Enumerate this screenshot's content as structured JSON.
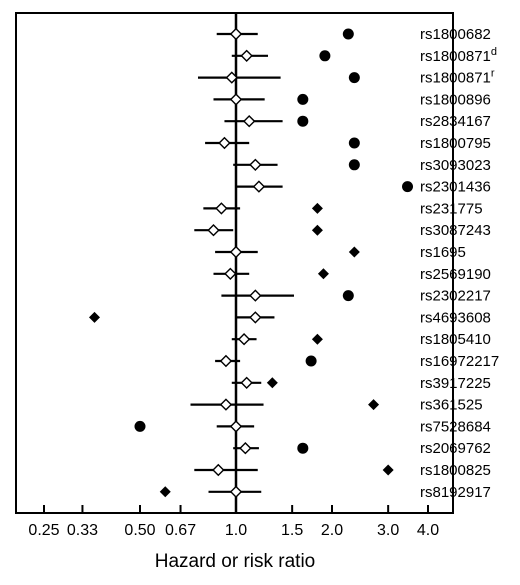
{
  "chart_data": {
    "type": "forest",
    "title": "",
    "xlabel": "Hazard or risk ratio",
    "xscale": "log",
    "xlim": [
      0.2,
      4.6
    ],
    "xticks": [
      0.25,
      0.33,
      0.5,
      0.67,
      1.0,
      1.5,
      2.0,
      3.0,
      4.0
    ],
    "xtick_labels": [
      "0.25",
      "0.33",
      "0.50",
      "0.67",
      "1.0",
      "1.5",
      "2.0",
      "3.0",
      "4.0"
    ],
    "reference_line": 1.0,
    "grid": false,
    "rows": [
      {
        "snp": "rs1800682",
        "sup": "",
        "estimate": 1.0,
        "ci": [
          0.87,
          1.17
        ],
        "marker_value": 2.25,
        "marker": "circle"
      },
      {
        "snp": "rs1800871",
        "sup": "d",
        "estimate": 1.08,
        "ci": [
          0.97,
          1.26
        ],
        "marker_value": 1.9,
        "marker": "circle"
      },
      {
        "snp": "rs1800871",
        "sup": "r",
        "estimate": 0.97,
        "ci": [
          0.76,
          1.38
        ],
        "marker_value": 2.35,
        "marker": "circle"
      },
      {
        "snp": "rs1800896",
        "sup": "",
        "estimate": 1.0,
        "ci": [
          0.85,
          1.23
        ],
        "marker_value": 1.62,
        "marker": "circle"
      },
      {
        "snp": "rs2834167",
        "sup": "",
        "estimate": 1.1,
        "ci": [
          0.92,
          1.4
        ],
        "marker_value": 1.62,
        "marker": "circle"
      },
      {
        "snp": "rs1800795",
        "sup": "",
        "estimate": 0.92,
        "ci": [
          0.8,
          1.1
        ],
        "marker_value": 2.35,
        "marker": "circle"
      },
      {
        "snp": "rs3093023",
        "sup": "",
        "estimate": 1.15,
        "ci": [
          0.98,
          1.35
        ],
        "marker_value": 2.35,
        "marker": "circle"
      },
      {
        "snp": "rs2301436",
        "sup": "",
        "estimate": 1.18,
        "ci": [
          1.0,
          1.4
        ],
        "marker_value": 3.45,
        "marker": "circle"
      },
      {
        "snp": "rs231775",
        "sup": "",
        "estimate": 0.9,
        "ci": [
          0.79,
          1.03
        ],
        "marker_value": 1.8,
        "marker": "diamond"
      },
      {
        "snp": "rs3087243",
        "sup": "",
        "estimate": 0.85,
        "ci": [
          0.74,
          0.98
        ],
        "marker_value": 1.8,
        "marker": "diamond"
      },
      {
        "snp": "rs1695",
        "sup": "",
        "estimate": 1.0,
        "ci": [
          0.86,
          1.17
        ],
        "marker_value": 2.35,
        "marker": "diamond"
      },
      {
        "snp": "rs2569190",
        "sup": "",
        "estimate": 0.96,
        "ci": [
          0.85,
          1.1
        ],
        "marker_value": 1.88,
        "marker": "diamond"
      },
      {
        "snp": "rs2302217",
        "sup": "",
        "estimate": 1.15,
        "ci": [
          0.9,
          1.52
        ],
        "marker_value": 2.25,
        "marker": "circle"
      },
      {
        "snp": "rs4693608",
        "sup": "",
        "estimate": 1.15,
        "ci": [
          1.0,
          1.32
        ],
        "marker_value": 0.36,
        "marker": "diamond"
      },
      {
        "snp": "rs1805410",
        "sup": "",
        "estimate": 1.06,
        "ci": [
          0.97,
          1.16
        ],
        "marker_value": 1.8,
        "marker": "diamond"
      },
      {
        "snp": "rs16972217",
        "sup": "",
        "estimate": 0.93,
        "ci": [
          0.86,
          1.03
        ],
        "marker_value": 1.72,
        "marker": "circle"
      },
      {
        "snp": "rs3917225",
        "sup": "",
        "estimate": 1.08,
        "ci": [
          0.97,
          1.2
        ],
        "marker_value": 1.3,
        "marker": "diamond"
      },
      {
        "snp": "rs361525",
        "sup": "",
        "estimate": 0.93,
        "ci": [
          0.72,
          1.22
        ],
        "marker_value": 2.7,
        "marker": "diamond"
      },
      {
        "snp": "rs7528684",
        "sup": "",
        "estimate": 1.0,
        "ci": [
          0.87,
          1.14
        ],
        "marker_value": 0.5,
        "marker": "circle"
      },
      {
        "snp": "rs2069762",
        "sup": "",
        "estimate": 1.07,
        "ci": [
          0.98,
          1.18
        ],
        "marker_value": 1.62,
        "marker": "circle"
      },
      {
        "snp": "rs1800825",
        "sup": "",
        "estimate": 0.88,
        "ci": [
          0.74,
          1.17
        ],
        "marker_value": 3.0,
        "marker": "diamond"
      },
      {
        "snp": "rs8192917",
        "sup": "",
        "estimate": 1.0,
        "ci": [
          0.82,
          1.2
        ],
        "marker_value": 0.6,
        "marker": "diamond"
      }
    ]
  }
}
